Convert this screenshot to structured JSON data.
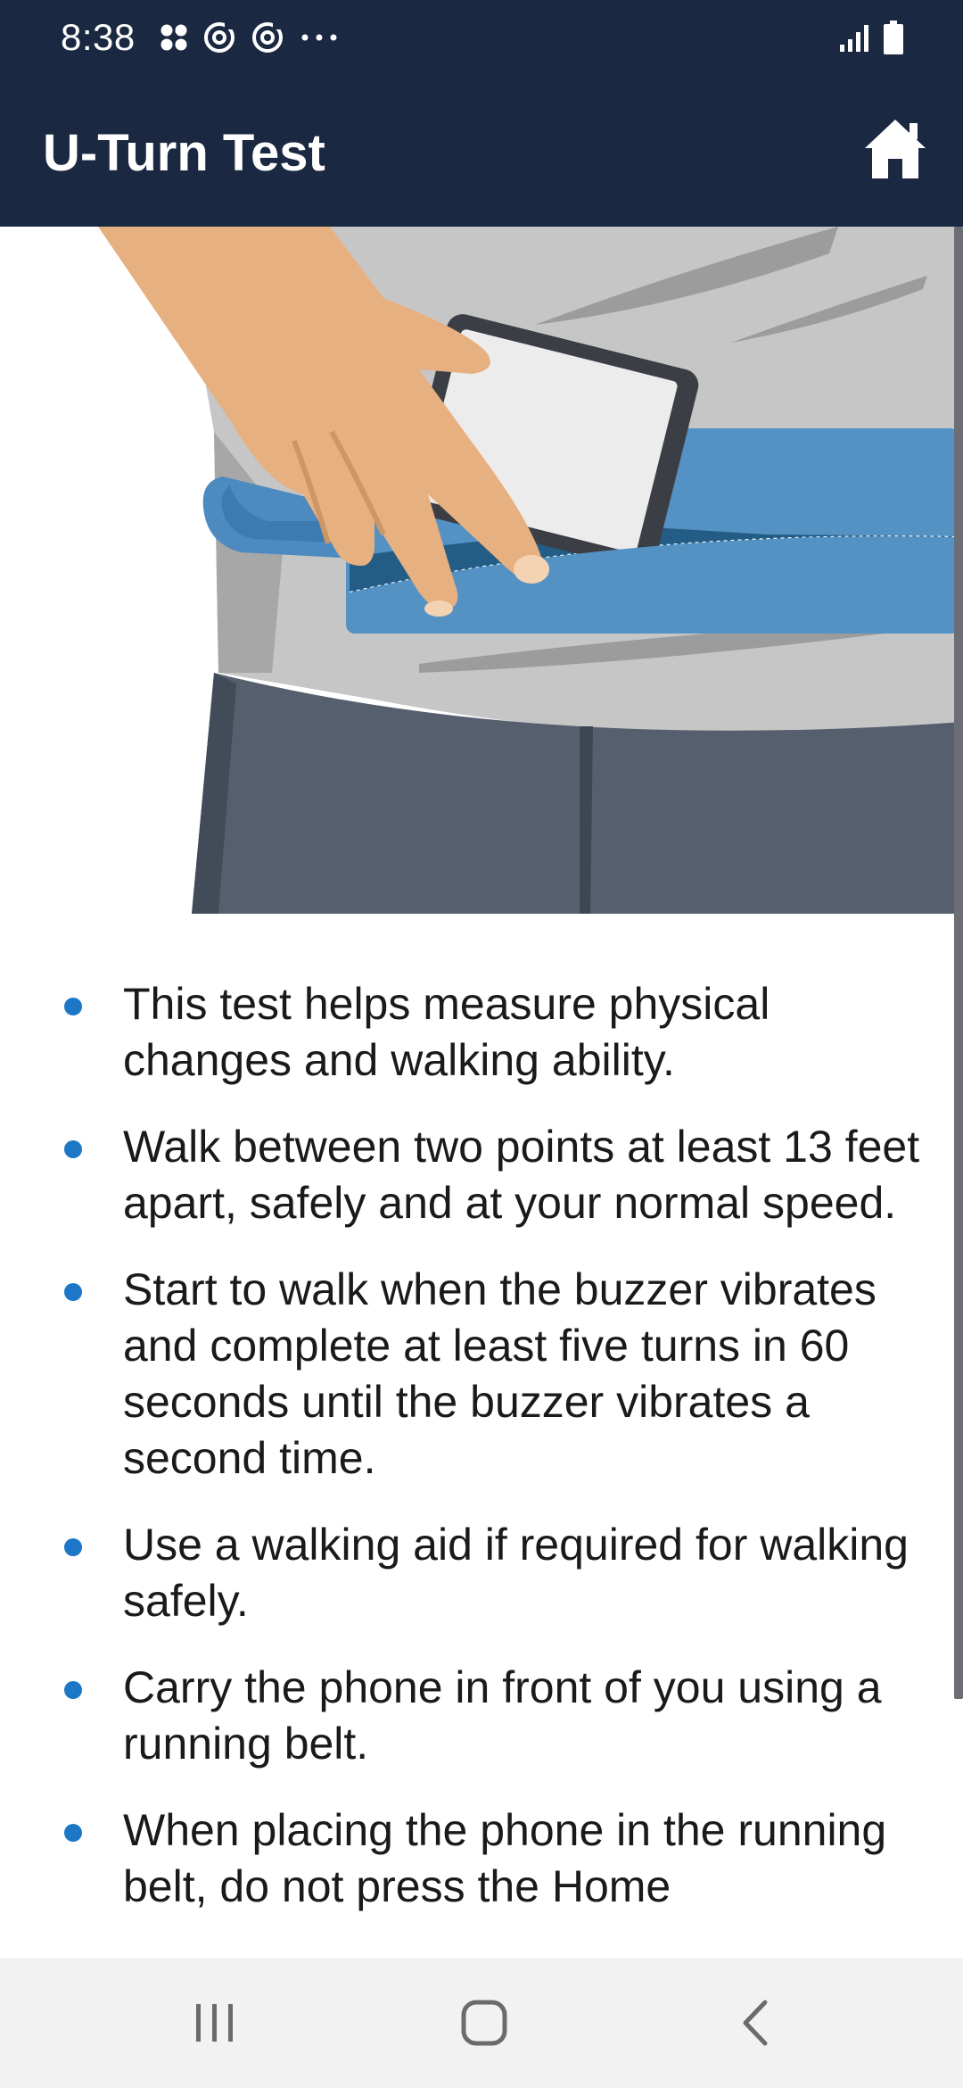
{
  "status_bar": {
    "time": "8:38",
    "left_icons": [
      "apps-grid-icon",
      "sync-icon",
      "sync-icon",
      "more-dots-icon"
    ],
    "right_icons": [
      "signal-icon",
      "battery-icon"
    ]
  },
  "app_bar": {
    "title": "U-Turn Test",
    "home_icon": "home-icon"
  },
  "illustration": {
    "subject": "hand placing phone into running belt",
    "colors": {
      "skin": "#e7b080",
      "shirt": "#c4c4c4",
      "belt": "#5592c4",
      "pants": "#555f6e",
      "phone_frame": "#3b3f45",
      "phone_screen": "#ececec"
    }
  },
  "instructions": [
    "This test helps measure physical changes and walking ability.",
    "Walk between two points at least 13 feet apart, safely and at your normal speed.",
    "Start to walk when the buzzer vibrates and complete at least five turns in 60 seconds until the buzzer vibrates a second time.",
    "Use a walking aid if required for walking safely.",
    "Carry the phone in front of you using a running belt.",
    "When placing the phone in the running belt, do not press the Home"
  ],
  "nav_bar": {
    "recents_icon": "recents-icon",
    "home_icon": "home-circle-icon",
    "back_icon": "back-chevron-icon"
  },
  "colors": {
    "header": "#1a2941",
    "bullet": "#1d77c7",
    "nav_background": "#f2f2f2"
  }
}
